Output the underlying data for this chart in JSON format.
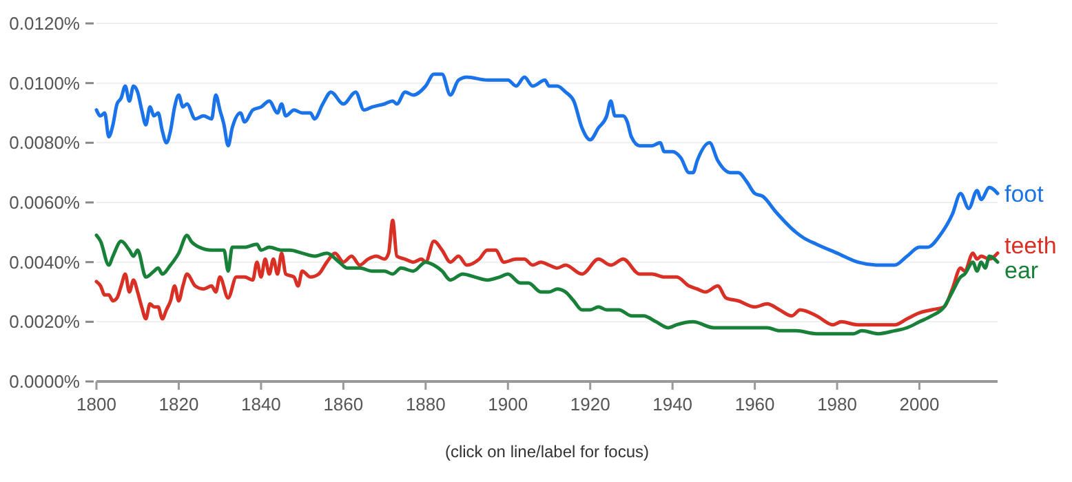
{
  "chart_data": {
    "type": "line",
    "xlim": [
      1800,
      2019
    ],
    "xticks": [
      1800,
      1820,
      1840,
      1860,
      1880,
      1900,
      1920,
      1940,
      1960,
      1980,
      2000
    ],
    "ylim": [
      0,
      0.012
    ],
    "yticks": [
      {
        "value": 0,
        "label": "0.0000%"
      },
      {
        "value": 0.002,
        "label": "0.0020%"
      },
      {
        "value": 0.004,
        "label": "0.0040%"
      },
      {
        "value": 0.006,
        "label": "0.0060%"
      },
      {
        "value": 0.008,
        "label": "0.0080%"
      },
      {
        "value": 0.01,
        "label": "0.0100%"
      },
      {
        "value": 0.012,
        "label": "0.0120%"
      }
    ],
    "grid": "y",
    "legend": false,
    "marker": "none",
    "line_style": "solid",
    "annotations": [
      "(click on line/label for focus)"
    ],
    "series": [
      {
        "name": "foot",
        "color": "#1a73e8",
        "x": [
          1800,
          1801,
          1802,
          1803,
          1804,
          1805,
          1806,
          1807,
          1808,
          1809,
          1810,
          1811,
          1812,
          1813,
          1814,
          1815,
          1816,
          1817,
          1818,
          1819,
          1820,
          1821,
          1822,
          1824,
          1826,
          1828,
          1829,
          1830,
          1831,
          1832,
          1833,
          1835,
          1836,
          1838,
          1840,
          1842,
          1844,
          1845,
          1846,
          1848,
          1850,
          1852,
          1853,
          1855,
          1857,
          1860,
          1863,
          1865,
          1867,
          1870,
          1872,
          1873,
          1875,
          1877,
          1880,
          1882,
          1884,
          1886,
          1888,
          1890,
          1895,
          1900,
          1902,
          1904,
          1906,
          1909,
          1910,
          1912,
          1914,
          1916,
          1918,
          1920,
          1922,
          1924,
          1925,
          1926,
          1928,
          1929,
          1930,
          1932,
          1935,
          1937,
          1938,
          1940,
          1942,
          1944,
          1945,
          1946,
          1949,
          1951,
          1954,
          1956,
          1958,
          1960,
          1962,
          1965,
          1970,
          1972,
          1975,
          1980,
          1985,
          1990,
          1994,
          1997,
          2000,
          2002,
          2005,
          2008,
          2010,
          2012,
          2014,
          2015,
          2017,
          2019
        ],
        "values": [
          0.0091,
          0.0089,
          0.009,
          0.0082,
          0.0086,
          0.0093,
          0.0095,
          0.0099,
          0.0094,
          0.0099,
          0.0097,
          0.0091,
          0.0086,
          0.0092,
          0.0089,
          0.009,
          0.0084,
          0.008,
          0.0084,
          0.0092,
          0.0096,
          0.0092,
          0.0093,
          0.0088,
          0.0089,
          0.0088,
          0.0096,
          0.0091,
          0.0086,
          0.0079,
          0.0085,
          0.009,
          0.0087,
          0.0091,
          0.0092,
          0.0094,
          0.009,
          0.0093,
          0.0089,
          0.0091,
          0.009,
          0.009,
          0.0088,
          0.0093,
          0.0097,
          0.0093,
          0.0097,
          0.0091,
          0.0092,
          0.0093,
          0.0094,
          0.0093,
          0.0097,
          0.0096,
          0.0099,
          0.0103,
          0.0103,
          0.0096,
          0.0101,
          0.0102,
          0.0101,
          0.0101,
          0.0099,
          0.0102,
          0.0099,
          0.0101,
          0.0099,
          0.0099,
          0.0097,
          0.0094,
          0.0085,
          0.0081,
          0.0085,
          0.0089,
          0.0094,
          0.0089,
          0.0089,
          0.0087,
          0.0082,
          0.0079,
          0.0079,
          0.008,
          0.0077,
          0.0077,
          0.0075,
          0.007,
          0.007,
          0.0074,
          0.008,
          0.0074,
          0.007,
          0.007,
          0.0067,
          0.0063,
          0.0062,
          0.0057,
          0.005,
          0.0048,
          0.0046,
          0.0043,
          0.004,
          0.0039,
          0.0039,
          0.0042,
          0.0045,
          0.0045,
          0.0049,
          0.0056,
          0.0063,
          0.0058,
          0.0064,
          0.0061,
          0.0065,
          0.0063
        ]
      },
      {
        "name": "teeth",
        "color": "#d93025",
        "x": [
          1800,
          1801,
          1802,
          1803,
          1804,
          1805,
          1806,
          1807,
          1808,
          1809,
          1810,
          1811,
          1812,
          1813,
          1814,
          1815,
          1816,
          1817,
          1818,
          1819,
          1820,
          1821,
          1822,
          1824,
          1826,
          1828,
          1829,
          1830,
          1832,
          1834,
          1836,
          1838,
          1839,
          1840,
          1841,
          1842,
          1843,
          1844,
          1845,
          1846,
          1848,
          1849,
          1850,
          1852,
          1854,
          1856,
          1858,
          1860,
          1862,
          1864,
          1866,
          1868,
          1870,
          1871,
          1872,
          1873,
          1875,
          1877,
          1879,
          1880,
          1882,
          1884,
          1886,
          1888,
          1890,
          1893,
          1895,
          1897,
          1899,
          1902,
          1904,
          1906,
          1908,
          1910,
          1912,
          1914,
          1918,
          1922,
          1925,
          1928,
          1932,
          1935,
          1938,
          1941,
          1944,
          1946,
          1948,
          1951,
          1953,
          1956,
          1960,
          1963,
          1966,
          1969,
          1971,
          1975,
          1979,
          1981,
          1985,
          1990,
          1994,
          1997,
          2000,
          2003,
          2006,
          2008,
          2010,
          2011,
          2013,
          2014,
          2015,
          2017,
          2019
        ],
        "values": [
          0.00335,
          0.0032,
          0.0029,
          0.0029,
          0.0027,
          0.0028,
          0.0032,
          0.0036,
          0.003,
          0.0034,
          0.003,
          0.0025,
          0.0021,
          0.0026,
          0.0025,
          0.0025,
          0.0021,
          0.0024,
          0.0027,
          0.0032,
          0.0027,
          0.0032,
          0.0036,
          0.0032,
          0.0031,
          0.0032,
          0.003,
          0.0035,
          0.0028,
          0.0035,
          0.0035,
          0.0034,
          0.004,
          0.0035,
          0.0041,
          0.0036,
          0.0041,
          0.0036,
          0.0043,
          0.0036,
          0.0035,
          0.0032,
          0.0037,
          0.0035,
          0.0036,
          0.004,
          0.0043,
          0.004,
          0.0042,
          0.0039,
          0.0041,
          0.0042,
          0.0041,
          0.0043,
          0.0054,
          0.0042,
          0.0041,
          0.004,
          0.0041,
          0.004,
          0.0047,
          0.0044,
          0.004,
          0.0042,
          0.0039,
          0.0041,
          0.0044,
          0.0044,
          0.004,
          0.0041,
          0.0041,
          0.0039,
          0.004,
          0.0039,
          0.0038,
          0.0039,
          0.0036,
          0.0041,
          0.0039,
          0.0041,
          0.0036,
          0.0036,
          0.0035,
          0.0035,
          0.0032,
          0.0031,
          0.003,
          0.0032,
          0.0028,
          0.0027,
          0.0025,
          0.0026,
          0.0024,
          0.0022,
          0.0024,
          0.0022,
          0.0019,
          0.002,
          0.0019,
          0.0019,
          0.0019,
          0.0021,
          0.0023,
          0.0024,
          0.0025,
          0.0031,
          0.0038,
          0.0037,
          0.0043,
          0.0041,
          0.0042,
          0.0041,
          0.0043
        ]
      },
      {
        "name": "ear",
        "color": "#188038",
        "x": [
          1800,
          1801,
          1803,
          1804,
          1806,
          1808,
          1809,
          1810,
          1812,
          1814,
          1815,
          1816,
          1818,
          1820,
          1822,
          1823,
          1825,
          1828,
          1830,
          1831,
          1832,
          1833,
          1836,
          1839,
          1840,
          1842,
          1845,
          1847,
          1850,
          1853,
          1856,
          1859,
          1861,
          1864,
          1867,
          1870,
          1872,
          1874,
          1877,
          1880,
          1882,
          1884,
          1886,
          1889,
          1892,
          1895,
          1898,
          1900,
          1903,
          1905,
          1908,
          1910,
          1912,
          1914,
          1916,
          1918,
          1920,
          1922,
          1924,
          1927,
          1930,
          1933,
          1936,
          1939,
          1941,
          1945,
          1950,
          1955,
          1960,
          1963,
          1966,
          1970,
          1975,
          1980,
          1984,
          1986,
          1990,
          1994,
          1997,
          2000,
          2003,
          2006,
          2008,
          2010,
          2011,
          2013,
          2014,
          2015,
          2016,
          2017,
          2019
        ],
        "values": [
          0.0049,
          0.0047,
          0.0039,
          0.0042,
          0.0047,
          0.0044,
          0.0042,
          0.0044,
          0.0035,
          0.0037,
          0.0038,
          0.0036,
          0.0039,
          0.0043,
          0.0049,
          0.0047,
          0.0045,
          0.0044,
          0.0044,
          0.0044,
          0.0037,
          0.0045,
          0.0045,
          0.0046,
          0.0044,
          0.0045,
          0.0044,
          0.0044,
          0.0043,
          0.0042,
          0.0043,
          0.004,
          0.0038,
          0.0038,
          0.0037,
          0.0037,
          0.0036,
          0.0038,
          0.0037,
          0.004,
          0.0039,
          0.0037,
          0.0034,
          0.0036,
          0.0035,
          0.0034,
          0.0035,
          0.0036,
          0.0033,
          0.0033,
          0.003,
          0.003,
          0.0031,
          0.003,
          0.0027,
          0.0024,
          0.0024,
          0.0025,
          0.0024,
          0.0024,
          0.0022,
          0.0022,
          0.002,
          0.0018,
          0.0019,
          0.002,
          0.0018,
          0.0018,
          0.0018,
          0.0018,
          0.0017,
          0.0017,
          0.0016,
          0.0016,
          0.0016,
          0.0017,
          0.0016,
          0.0017,
          0.0018,
          0.002,
          0.0022,
          0.0025,
          0.003,
          0.0035,
          0.0036,
          0.004,
          0.0037,
          0.004,
          0.0038,
          0.0042,
          0.004
        ]
      }
    ]
  }
}
